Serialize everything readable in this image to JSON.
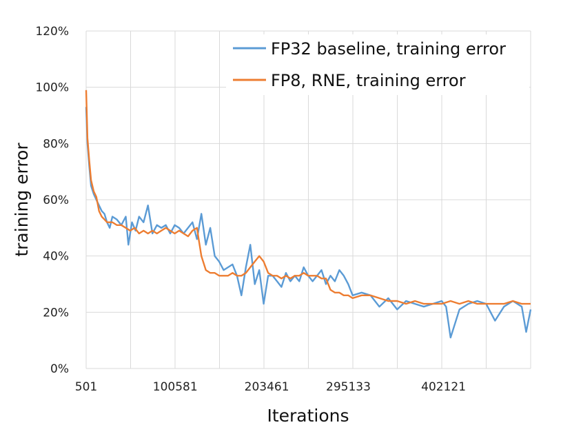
{
  "chart_data": {
    "type": "line",
    "xlabel": "Iterations",
    "ylabel": "training error",
    "x_tick_labels": [
      "501",
      "100581",
      "203461",
      "295133",
      "402121"
    ],
    "x_tick_values": [
      501,
      100581,
      203461,
      295133,
      402121
    ],
    "xlim": [
      501,
      500000
    ],
    "y_ticks": [
      "0%",
      "20%",
      "40%",
      "60%",
      "80%",
      "100%",
      "120%"
    ],
    "y_tick_values": [
      0,
      20,
      40,
      60,
      80,
      100,
      120
    ],
    "ylim": [
      0,
      120
    ],
    "grid": true,
    "legend_position": "top-right",
    "series": [
      {
        "name": "FP32 baseline, training error",
        "color": "#5b9bd5",
        "x": [
          501,
          2000,
          4000,
          6000,
          9000,
          12000,
          15000,
          18000,
          21000,
          24000,
          27000,
          30000,
          35000,
          40000,
          45000,
          48000,
          52000,
          56000,
          60000,
          65000,
          70000,
          75000,
          80000,
          85000,
          90000,
          95000,
          100000,
          105000,
          110000,
          115000,
          120000,
          125000,
          130000,
          135000,
          140000,
          145000,
          150000,
          155000,
          160000,
          165000,
          170000,
          175000,
          180000,
          185000,
          190000,
          195000,
          200000,
          205000,
          210000,
          215000,
          220000,
          225000,
          230000,
          235000,
          240000,
          245000,
          250000,
          255000,
          260000,
          265000,
          270000,
          275000,
          280000,
          285000,
          290000,
          295000,
          300000,
          310000,
          320000,
          330000,
          340000,
          350000,
          360000,
          370000,
          380000,
          390000,
          400000,
          405000,
          410000,
          420000,
          430000,
          440000,
          450000,
          460000,
          470000,
          480000,
          490000,
          495000,
          500000
        ],
        "values": [
          93,
          80,
          72,
          65,
          62,
          60,
          58,
          56,
          55,
          52,
          50,
          54,
          53,
          51,
          54,
          44,
          52,
          49,
          54,
          52,
          58,
          48,
          51,
          50,
          51,
          48,
          51,
          50,
          48,
          50,
          52,
          46,
          55,
          44,
          50,
          40,
          38,
          35,
          36,
          37,
          33,
          26,
          36,
          44,
          30,
          35,
          23,
          33,
          33,
          31,
          29,
          34,
          31,
          33,
          31,
          36,
          33,
          31,
          33,
          35,
          30,
          33,
          31,
          35,
          33,
          30,
          26,
          27,
          26,
          22,
          25,
          21,
          24,
          23,
          22,
          23,
          24,
          22,
          11,
          21,
          23,
          24,
          23,
          17,
          22,
          24,
          22,
          13,
          21
        ]
      },
      {
        "name": "FP8, RNE, training error",
        "color": "#ed7d31",
        "x": [
          501,
          2000,
          4000,
          6000,
          9000,
          12000,
          15000,
          18000,
          21000,
          24000,
          27000,
          30000,
          35000,
          40000,
          45000,
          50000,
          55000,
          60000,
          65000,
          70000,
          75000,
          80000,
          85000,
          90000,
          95000,
          100000,
          105000,
          110000,
          115000,
          120000,
          125000,
          127000,
          130000,
          135000,
          140000,
          145000,
          150000,
          155000,
          160000,
          165000,
          170000,
          175000,
          180000,
          185000,
          190000,
          195000,
          200000,
          205000,
          210000,
          215000,
          220000,
          225000,
          230000,
          235000,
          240000,
          245000,
          250000,
          255000,
          260000,
          265000,
          270000,
          275000,
          280000,
          285000,
          290000,
          295000,
          300000,
          310000,
          320000,
          330000,
          340000,
          350000,
          360000,
          370000,
          380000,
          390000,
          400000,
          410000,
          420000,
          430000,
          440000,
          450000,
          460000,
          470000,
          480000,
          490000,
          500000
        ],
        "values": [
          99,
          82,
          74,
          67,
          63,
          61,
          56,
          54,
          53,
          52,
          52,
          52,
          51,
          51,
          50,
          49,
          50,
          48,
          49,
          48,
          49,
          48,
          49,
          50,
          49,
          48,
          49,
          48,
          47,
          49,
          50,
          46,
          40,
          35,
          34,
          34,
          33,
          33,
          33,
          34,
          33,
          33,
          34,
          36,
          38,
          40,
          38,
          34,
          33,
          33,
          32,
          33,
          32,
          33,
          33,
          34,
          33,
          33,
          33,
          32,
          32,
          28,
          27,
          27,
          26,
          26,
          25,
          26,
          26,
          25,
          24,
          24,
          23,
          24,
          23,
          23,
          23,
          24,
          23,
          24,
          23,
          23,
          23,
          23,
          24,
          23,
          23
        ]
      }
    ]
  }
}
